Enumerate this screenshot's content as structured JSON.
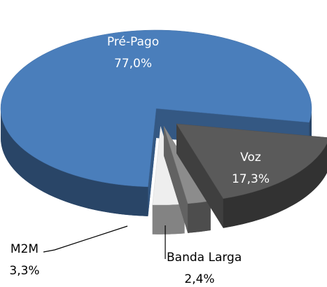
{
  "chart_data": {
    "type": "pie3d",
    "categories": [
      "Pré-Pago",
      "Voz",
      "Banda Larga",
      "M2M"
    ],
    "values": [
      77.0,
      17.3,
      2.4,
      3.3
    ],
    "value_labels": [
      "77,0%",
      "17,3%",
      "2,4%",
      "3,3%"
    ],
    "colors": [
      "#4a7ebb",
      "#5a5a5a",
      "#8c8c8c",
      "#eeeeee"
    ]
  }
}
